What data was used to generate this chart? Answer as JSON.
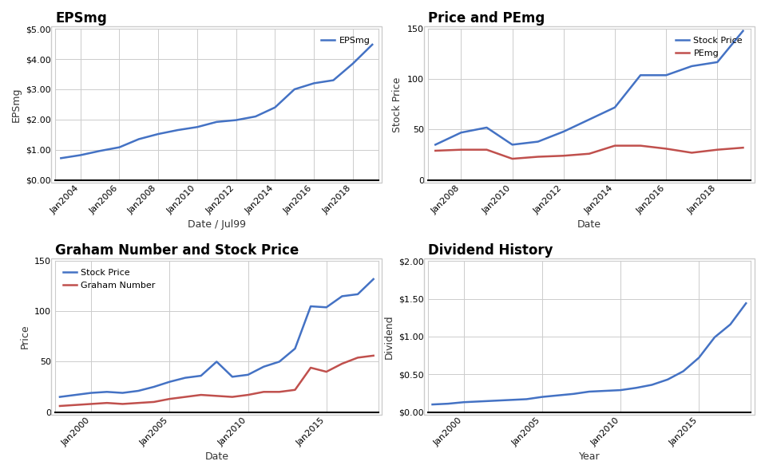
{
  "epsmg": {
    "title": "EPSmg",
    "xlabel": "Date / Jul99",
    "ylabel": "EPSmg",
    "color": "#4472C4",
    "legend_label": "EPSmg",
    "x": [
      2003,
      2004,
      2005,
      2006,
      2007,
      2008,
      2009,
      2010,
      2011,
      2012,
      2013,
      2014,
      2015,
      2016,
      2017,
      2018,
      2019
    ],
    "y": [
      0.72,
      0.82,
      0.96,
      1.08,
      1.35,
      1.52,
      1.65,
      1.75,
      1.92,
      1.98,
      2.1,
      2.4,
      3.0,
      3.2,
      3.3,
      3.85,
      4.48
    ],
    "ylim": [
      0,
      5.0
    ],
    "yticks": [
      0.0,
      1.0,
      2.0,
      3.0,
      4.0,
      5.0
    ],
    "ytick_labels": [
      "$0.00",
      "$1.00",
      "$2.00",
      "$3.00",
      "$4.00",
      "$5.00"
    ],
    "xticks": [
      2004,
      2006,
      2008,
      2010,
      2012,
      2014,
      2016,
      2018
    ]
  },
  "price_pemg": {
    "title": "Price and PEmg",
    "xlabel": "Date",
    "ylabel": "Stock Price",
    "stock_color": "#4472C4",
    "pemg_color": "#C0504D",
    "stock_label": "Stock Price",
    "pemg_label": "PEmg",
    "x": [
      2007,
      2008,
      2009,
      2010,
      2011,
      2012,
      2013,
      2014,
      2015,
      2016,
      2017,
      2018,
      2019
    ],
    "stock_y": [
      35,
      47,
      52,
      35,
      38,
      48,
      60,
      72,
      104,
      104,
      113,
      117,
      148
    ],
    "pemg_y": [
      29,
      30,
      30,
      21,
      23,
      24,
      26,
      34,
      34,
      31,
      27,
      30,
      32
    ],
    "ylim": [
      0,
      150
    ],
    "yticks": [
      0,
      50,
      100,
      150
    ],
    "xticks": [
      2008,
      2010,
      2012,
      2014,
      2016,
      2018
    ]
  },
  "graham": {
    "title": "Graham Number and Stock Price",
    "xlabel": "Date",
    "ylabel": "Price",
    "stock_color": "#4472C4",
    "graham_color": "#C0504D",
    "stock_label": "Stock Price",
    "graham_label": "Graham Number",
    "x": [
      1998,
      1999,
      2000,
      2001,
      2002,
      2003,
      2004,
      2005,
      2006,
      2007,
      2008,
      2009,
      2010,
      2011,
      2012,
      2013,
      2014,
      2015,
      2016,
      2017,
      2018
    ],
    "stock_y": [
      15,
      17,
      19,
      20,
      19,
      21,
      25,
      30,
      34,
      36,
      50,
      35,
      37,
      45,
      50,
      63,
      105,
      104,
      115,
      117,
      132
    ],
    "graham_y": [
      6,
      7,
      8,
      9,
      8,
      9,
      10,
      13,
      15,
      17,
      16,
      15,
      17,
      20,
      20,
      22,
      44,
      40,
      48,
      54,
      56
    ],
    "ylim": [
      0,
      150
    ],
    "yticks": [
      0,
      50,
      100,
      150
    ],
    "xticks": [
      2000,
      2005,
      2010,
      2015
    ]
  },
  "dividend": {
    "title": "Dividend History",
    "xlabel": "Year",
    "ylabel": "Dividend",
    "color": "#4472C4",
    "x": [
      1998,
      1999,
      2000,
      2001,
      2002,
      2003,
      2004,
      2005,
      2006,
      2007,
      2008,
      2009,
      2010,
      2011,
      2012,
      2013,
      2014,
      2015,
      2016,
      2017,
      2018
    ],
    "y": [
      0.1,
      0.11,
      0.13,
      0.14,
      0.15,
      0.16,
      0.17,
      0.2,
      0.22,
      0.24,
      0.27,
      0.28,
      0.29,
      0.32,
      0.36,
      0.43,
      0.54,
      0.72,
      0.99,
      1.16,
      1.44
    ],
    "ylim": [
      0,
      2.0
    ],
    "yticks": [
      0.0,
      0.5,
      1.0,
      1.5,
      2.0
    ],
    "ytick_labels": [
      "$0.00",
      "$0.50",
      "$1.00",
      "$1.50",
      "$2.00"
    ],
    "xticks": [
      2000,
      2005,
      2010,
      2015
    ]
  },
  "bg_color": "#ffffff",
  "panel_bg": "#ffffff",
  "grid_color": "#cccccc",
  "border_color": "#cccccc",
  "title_fontsize": 12,
  "label_fontsize": 9,
  "tick_fontsize": 8,
  "line_width": 1.8
}
